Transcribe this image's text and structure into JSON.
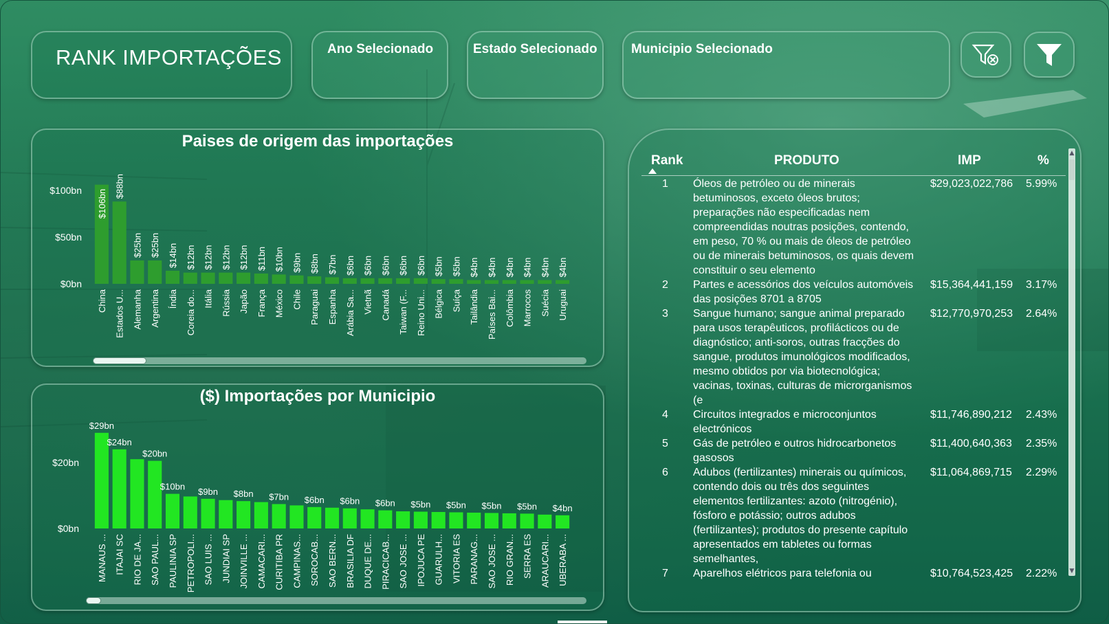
{
  "header": {
    "title": "RANK IMPORTAÇÕES",
    "slicers": [
      {
        "label": "Ano Selecionado"
      },
      {
        "label": "Estado Selecionado"
      },
      {
        "label": "Municipio Selecionado"
      }
    ],
    "buttons": {
      "clear_filters_icon": "filter-clear-icon",
      "filter_icon": "filter-icon"
    }
  },
  "colors": {
    "bar_countries": "#2e9d2e",
    "bar_municipios": "#22e622",
    "accent_dark": "#0f5d45"
  },
  "chart_data": [
    {
      "type": "bar",
      "title": "Paises de origem das importações",
      "xlabel": "",
      "ylabel": "",
      "ylim": [
        0,
        108
      ],
      "yticks": [
        {
          "value": 0,
          "label": "$0bn"
        },
        {
          "value": 50,
          "label": "$50bn"
        },
        {
          "value": 100,
          "label": "$100bn"
        }
      ],
      "categories": [
        "China",
        "Estados U...",
        "Alemanha",
        "Argentina",
        "Índia",
        "Coreia do...",
        "Itália",
        "Rússia",
        "Japão",
        "França",
        "México",
        "Chile",
        "Paraguai",
        "Espanha",
        "Arábia Sa...",
        "Vietnã",
        "Canadá",
        "Taiwan (F...",
        "Reino Uni...",
        "Bélgica",
        "Suíça",
        "Tailândia",
        "Países Bai...",
        "Colômbia",
        "Marrocos",
        "Suécia",
        "Uruguai"
      ],
      "values": [
        106,
        88,
        25,
        25,
        14,
        12,
        12,
        12,
        12,
        11,
        10,
        9,
        8,
        7,
        6,
        6,
        6,
        6,
        6,
        5,
        5,
        4,
        4,
        4,
        4,
        4,
        4
      ],
      "labels": [
        "$106bn",
        "$88bn",
        "$25bn",
        "$25bn",
        "$14bn",
        "$12bn",
        "$12bn",
        "$12bn",
        "$12bn",
        "$11bn",
        "$10bn",
        "$9bn",
        "$8bn",
        "$7bn",
        "$6bn",
        "$6bn",
        "$6bn",
        "$6bn",
        "$6bn",
        "$5bn",
        "$5bn",
        "$4bn",
        "$4bn",
        "$4bn",
        "$4bn",
        "$4bn",
        "$4bn"
      ],
      "grid": false,
      "legend": "none"
    },
    {
      "type": "bar",
      "title": "($) Importações por Municipio",
      "xlabel": "",
      "ylabel": "",
      "ylim": [
        0,
        30
      ],
      "yticks": [
        {
          "value": 0,
          "label": "$0bn"
        },
        {
          "value": 20,
          "label": "$20bn"
        }
      ],
      "categories": [
        "MANAUS ...",
        "ITAJAI SC",
        "RIO DE JA...",
        "SAO PAUL...",
        "PAULINIA SP",
        "PETROPOLI...",
        "SAO LUIS ...",
        "JUNDIAI SP",
        "JOINVILLE ...",
        "CAMACARI...",
        "CURITIBA PR",
        "CAMPINAS...",
        "SOROCAB...",
        "SAO BERN...",
        "BRASILIA DF",
        "DUQUE DE...",
        "PIRACICAB...",
        "SAO JOSE ...",
        "IPOJUCA PE",
        "GUARULH...",
        "VITORIA ES",
        "PARANAG...",
        "SAO JOSE ...",
        "RIO GRAN...",
        "SERRA ES",
        "ARAUCARI...",
        "UBERABA ..."
      ],
      "values": [
        29,
        24,
        21,
        20.5,
        10.5,
        9.7,
        9,
        8.6,
        8.3,
        8,
        7.4,
        7,
        6.5,
        6.3,
        6.1,
        5.8,
        5.5,
        5.2,
        5.1,
        5,
        4.9,
        4.8,
        4.7,
        4.6,
        4.5,
        4.2,
        4
      ],
      "labels": [
        "$29bn",
        "$24bn",
        "",
        "$20bn",
        "$10bn",
        "",
        "$9bn",
        "",
        "$8bn",
        "",
        "$7bn",
        "",
        "$6bn",
        "",
        "$6bn",
        "",
        "$6bn",
        "",
        "$5bn",
        "",
        "$5bn",
        "",
        "$5bn",
        "",
        "$5bn",
        "",
        "$4bn"
      ],
      "grid": false,
      "legend": "none"
    }
  ],
  "table": {
    "columns": [
      "Rank",
      "PRODUTO",
      "IMP",
      "%"
    ],
    "rows": [
      {
        "rank": "1",
        "produto": "Óleos de petróleo ou de minerais betuminosos, exceto óleos brutos; preparações não especificadas nem compreendidas noutras posições, contendo, em peso, 70 % ou mais de óleos de petróleo ou de minerais betuminosos, os quais devem constituir o seu elemento",
        "imp": "$29,023,022,786",
        "pct": "5.99%"
      },
      {
        "rank": "2",
        "produto": "Partes e acessórios dos veículos automóveis das posições 8701 a 8705",
        "imp": "$15,364,441,159",
        "pct": "3.17%"
      },
      {
        "rank": "3",
        "produto": "Sangue humano; sangue animal preparado para usos terapêuticos, profilácticos ou de diagnóstico; anti-soros, outras fracções do sangue, produtos imunológicos modificados, mesmo obtidos por via biotecnológica; vacinas, toxinas, culturas de microrganismos (e",
        "imp": "$12,770,970,253",
        "pct": "2.64%"
      },
      {
        "rank": "4",
        "produto": "Circuitos integrados e microconjuntos electrónicos",
        "imp": "$11,746,890,212",
        "pct": "2.43%"
      },
      {
        "rank": "5",
        "produto": "Gás de petróleo e outros hidrocarbonetos gasosos",
        "imp": "$11,400,640,363",
        "pct": "2.35%"
      },
      {
        "rank": "6",
        "produto": "Adubos (fertilizantes) minerais ou químicos, contendo dois ou três dos seguintes elementos fertilizantes: azoto (nitrogénio), fósforo e potássio; outros adubos (fertilizantes); produtos do presente capítulo apresentados em tabletes ou formas semelhantes,",
        "imp": "$11,064,869,715",
        "pct": "2.29%"
      },
      {
        "rank": "7",
        "produto": "Aparelhos elétricos para telefonia ou",
        "imp": "$10,764,523,425",
        "pct": "2.22%"
      }
    ]
  }
}
